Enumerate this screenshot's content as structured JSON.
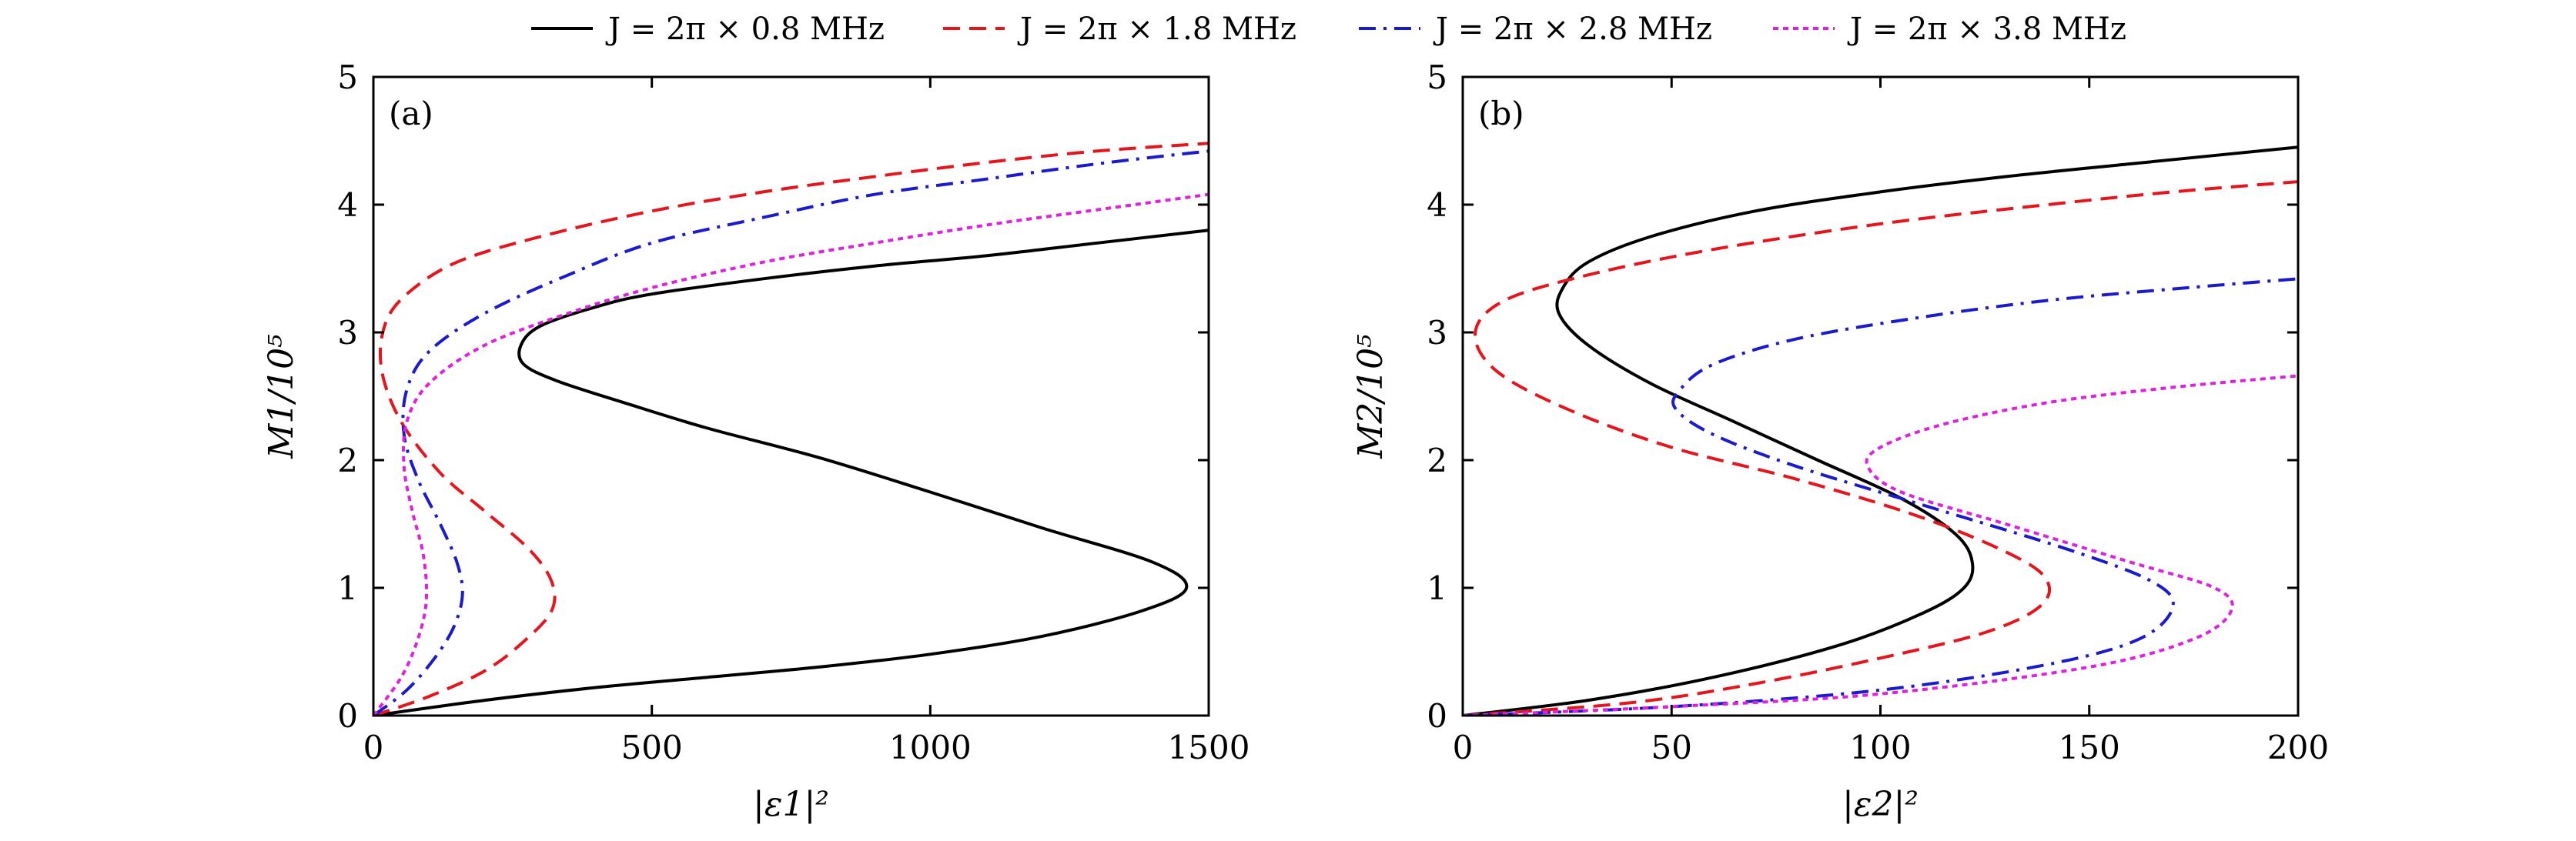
{
  "legend": [
    {
      "label": "J = 2π × 0.8 MHz",
      "color": "#000000",
      "dash": "solid"
    },
    {
      "label": "J = 2π × 1.8 MHz",
      "color": "#e8141c",
      "dash": "dashed"
    },
    {
      "label": "J = 2π × 2.8 MHz",
      "color": "#1a1ad0",
      "dash": "dashdot"
    },
    {
      "label": "J = 2π × 3.8 MHz",
      "color": "#e020e0",
      "dash": "dotted"
    }
  ],
  "chart_data": [
    {
      "type": "line",
      "panel": "(a)",
      "xlabel": "|ε1|²",
      "ylabel": "M1/10⁵",
      "xlim": [
        0,
        1500
      ],
      "ylim": [
        0,
        5
      ],
      "xticks": [
        0,
        500,
        1000,
        1500
      ],
      "yticks": [
        0,
        1,
        2,
        3,
        4,
        5
      ],
      "series": [
        {
          "name": "J = 2π × 0.8 MHz",
          "color": "#000000",
          "dash": "solid",
          "x": [
            0,
            200,
            400,
            600,
            800,
            1000,
            1200,
            1380,
            1460,
            1400,
            1200,
            1000,
            800,
            600,
            450,
            330,
            270,
            265,
            300,
            400,
            500,
            700,
            900,
            1100,
            1300,
            1500
          ],
          "y": [
            0,
            0.12,
            0.22,
            0.3,
            0.38,
            0.48,
            0.62,
            0.82,
            1.0,
            1.2,
            1.47,
            1.75,
            2.02,
            2.25,
            2.45,
            2.62,
            2.75,
            2.9,
            3.05,
            3.2,
            3.3,
            3.42,
            3.52,
            3.6,
            3.7,
            3.8
          ]
        },
        {
          "name": "J = 2π × 1.8 MHz",
          "color": "#e8141c",
          "dash": "dashed",
          "x": [
            0,
            100,
            200,
            270,
            320,
            320,
            280,
            200,
            120,
            50,
            15,
            20,
            60,
            150,
            300,
            500,
            700,
            900,
            1100,
            1300,
            1500
          ],
          "y": [
            0,
            0.15,
            0.35,
            0.58,
            0.82,
            1.05,
            1.3,
            1.6,
            1.9,
            2.3,
            2.7,
            3.05,
            3.3,
            3.55,
            3.75,
            3.95,
            4.1,
            4.22,
            4.33,
            4.42,
            4.48
          ]
        },
        {
          "name": "J = 2π × 2.8 MHz",
          "color": "#1a1ad0",
          "dash": "dashdot",
          "x": [
            0,
            60,
            110,
            145,
            160,
            150,
            120,
            80,
            55,
            60,
            100,
            200,
            350,
            500,
            700,
            900,
            1100,
            1300,
            1500
          ],
          "y": [
            0,
            0.2,
            0.45,
            0.7,
            0.95,
            1.2,
            1.5,
            1.85,
            2.2,
            2.55,
            2.85,
            3.15,
            3.45,
            3.7,
            3.9,
            4.08,
            4.2,
            4.32,
            4.42
          ]
        },
        {
          "name": "J = 2π × 3.8 MHz",
          "color": "#e020e0",
          "dash": "dotted",
          "x": [
            0,
            50,
            80,
            95,
            90,
            70,
            55,
            60,
            100,
            200,
            350,
            500,
            700,
            900,
            1100,
            1300,
            1500
          ],
          "y": [
            0,
            0.3,
            0.6,
            0.9,
            1.25,
            1.6,
            1.95,
            2.3,
            2.6,
            2.9,
            3.15,
            3.35,
            3.55,
            3.7,
            3.84,
            3.96,
            4.08
          ]
        }
      ]
    },
    {
      "type": "line",
      "panel": "(b)",
      "xlabel": "|ε2|²",
      "ylabel": "M2/10⁵",
      "xlim": [
        0,
        200
      ],
      "ylim": [
        0,
        5
      ],
      "xticks": [
        0,
        50,
        100,
        150,
        200
      ],
      "yticks": [
        0,
        1,
        2,
        3,
        4,
        5
      ],
      "series": [
        {
          "name": "J = 2π × 0.8 MHz",
          "color": "#000000",
          "dash": "solid",
          "x": [
            0,
            30,
            60,
            90,
            110,
            120,
            122,
            118,
            105,
            85,
            65,
            45,
            30,
            23,
            24,
            30,
            45,
            70,
            100,
            130,
            160,
            200
          ],
          "y": [
            0,
            0.12,
            0.3,
            0.55,
            0.8,
            1.0,
            1.2,
            1.42,
            1.7,
            2.0,
            2.3,
            2.6,
            2.9,
            3.15,
            3.35,
            3.55,
            3.75,
            3.95,
            4.1,
            4.22,
            4.32,
            4.45
          ]
        },
        {
          "name": "J = 2π × 1.8 MHz",
          "color": "#e8141c",
          "dash": "dashed",
          "x": [
            0,
            40,
            70,
            100,
            125,
            138,
            140,
            132,
            110,
            80,
            50,
            25,
            8,
            3,
            10,
            30,
            60,
            100,
            140,
            170,
            200
          ],
          "y": [
            0,
            0.1,
            0.25,
            0.45,
            0.65,
            0.85,
            1.05,
            1.25,
            1.55,
            1.85,
            2.1,
            2.4,
            2.7,
            3.0,
            3.25,
            3.45,
            3.65,
            3.85,
            4.0,
            4.1,
            4.18
          ]
        },
        {
          "name": "J = 2π × 2.8 MHz",
          "color": "#1a1ad0",
          "dash": "dashdot",
          "x": [
            0,
            50,
            100,
            140,
            162,
            170,
            165,
            145,
            110,
            80,
            60,
            51,
            52,
            60,
            80,
            110,
            140,
            170,
            200
          ],
          "y": [
            0,
            0.07,
            0.2,
            0.4,
            0.6,
            0.85,
            1.05,
            1.3,
            1.65,
            1.95,
            2.2,
            2.4,
            2.55,
            2.75,
            2.95,
            3.12,
            3.25,
            3.34,
            3.42
          ]
        },
        {
          "name": "J = 2π × 3.8 MHz",
          "color": "#e020e0",
          "dash": "dotted",
          "x": [
            0,
            50,
            100,
            150,
            175,
            184,
            180,
            160,
            130,
            105,
            97,
            100,
            115,
            140,
            170,
            200
          ],
          "y": [
            0,
            0.07,
            0.17,
            0.38,
            0.6,
            0.82,
            1.0,
            1.2,
            1.5,
            1.75,
            1.95,
            2.1,
            2.28,
            2.45,
            2.57,
            2.66
          ]
        }
      ]
    }
  ]
}
